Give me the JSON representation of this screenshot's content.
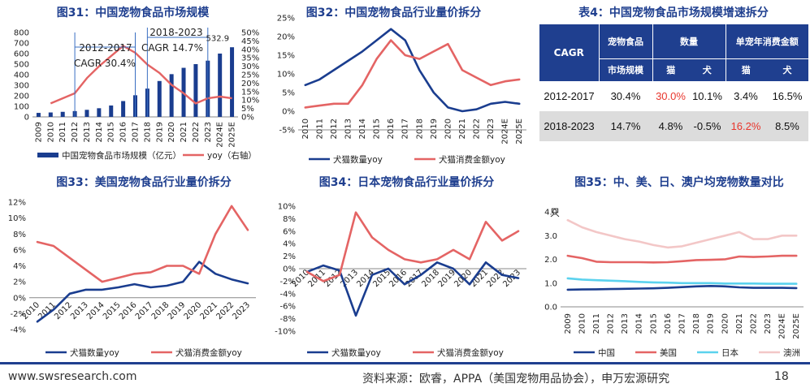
{
  "titles": {
    "c31": "图31：中国宠物食品市场规模",
    "c32": "图32：中国宠物食品行业量价拆分",
    "t4": "表4：中国宠物食品市场规模增速拆分",
    "c33": "图33：美国宠物食品行业量价拆分",
    "c34": "图34：日本宠物食品行业量价拆分",
    "c35": "图35：中、美、日、澳户均宠物数量对比"
  },
  "table4": {
    "h_cagr": "CAGR",
    "h_food": "宠物食品",
    "h_food2": "市场规模",
    "h_qty": "数量",
    "h_price": "单宠年消费金额",
    "h_cat": "猫",
    "h_dog": "犬",
    "h_cat2": "猫",
    "h_dog2": "犬",
    "rows": [
      {
        "period": "2012-2017",
        "food": "30.4%",
        "cat": "30.0%",
        "dog": "10.1%",
        "price_cat": "3.4%",
        "price_dog": "16.5%"
      },
      {
        "period": "2018-2023",
        "food": "14.7%",
        "cat": "4.8%",
        "dog": "-0.5%",
        "price_cat": "16.2%",
        "price_dog": "8.5%"
      }
    ]
  },
  "footer": {
    "url": "www.swsresearch.com",
    "source": "资料来源：欧睿，APPA（美国宠物用品协会），申万宏源研究",
    "page": "18"
  },
  "colors": {
    "blue": "#1a3d8f",
    "red": "#e46464",
    "lightblue": "#5bd2ee",
    "pink": "#f3c7c7",
    "title": "#1f3f8f"
  },
  "chart_data": [
    {
      "id": "c31",
      "type": "bar",
      "categories": [
        "2009",
        "2010",
        "2011",
        "2012",
        "2013",
        "2014",
        "2015",
        "2016",
        "2017",
        "2018",
        "2019",
        "2020",
        "2021",
        "2022",
        "2023",
        "2024E",
        "2025E"
      ],
      "series": [
        {
          "name": "中国宠物食品市场规模（亿元）",
          "type": "bar",
          "axis": "left",
          "values": [
            38,
            42,
            48,
            55,
            67,
            82,
            108,
            150,
            205,
            268,
            340,
            405,
            465,
            500,
            532.9,
            600,
            660
          ]
        },
        {
          "name": "yoy（右轴）",
          "type": "line",
          "axis": "right",
          "values": [
            null,
            8,
            11,
            14,
            23,
            30,
            36,
            42,
            38,
            31,
            26,
            19,
            14,
            8,
            11,
            12,
            11
          ]
        }
      ],
      "y_left": {
        "ticks": [
          0,
          100,
          200,
          300,
          400,
          500,
          600,
          700,
          800
        ],
        "labels": [
          "0",
          "100",
          "200",
          "300",
          "400",
          "500",
          "600",
          "700",
          "800"
        ]
      },
      "y_right": {
        "ticks": [
          0,
          5,
          10,
          15,
          20,
          25,
          30,
          35,
          40,
          45,
          50
        ],
        "labels": [
          "0%",
          "5%",
          "10%",
          "15%",
          "20%",
          "25%",
          "30%",
          "35%",
          "40%",
          "45%",
          "50%"
        ]
      },
      "annotations": {
        "a1": "2012-2017",
        "a2": "CAGR 30.4%",
        "a3": "2018-2023",
        "a4": "CAGR 14.7%",
        "a5": "532.9"
      }
    },
    {
      "id": "c32",
      "type": "line",
      "categories": [
        "2010",
        "2011",
        "2012",
        "2013",
        "2014",
        "2015",
        "2016",
        "2017",
        "2018",
        "2019",
        "2020",
        "2021",
        "2022",
        "2023",
        "2024E",
        "2025E"
      ],
      "series": [
        {
          "name": "犬猫数量yoy",
          "color": "blue",
          "values": [
            7,
            8.5,
            11,
            13.5,
            16,
            19,
            22,
            19,
            11,
            5,
            1,
            0,
            0.5,
            2,
            2.5,
            2
          ]
        },
        {
          "name": "犬猫消费金额yoy",
          "color": "red",
          "values": [
            1,
            1.5,
            2,
            2,
            7,
            14,
            19,
            15,
            14,
            16,
            18,
            11,
            9,
            7,
            8,
            8.5
          ]
        }
      ],
      "yticks": [
        -5,
        0,
        5,
        10,
        15,
        20,
        25
      ],
      "ylabels": [
        "-5%",
        "0%",
        "5%",
        "10%",
        "15%",
        "20%",
        "25%"
      ]
    },
    {
      "id": "c33",
      "type": "line",
      "categories": [
        "2010",
        "2011",
        "2012",
        "2013",
        "2014",
        "2015",
        "2016",
        "2017",
        "2018",
        "2019",
        "2020",
        "2021",
        "2022",
        "2023"
      ],
      "series": [
        {
          "name": "犬猫数量yoy",
          "color": "blue",
          "values": [
            -3,
            -1.5,
            0.5,
            1,
            1,
            1.3,
            1.7,
            1.3,
            1.5,
            2,
            4.5,
            3,
            2.3,
            1.8
          ]
        },
        {
          "name": "犬猫消费金额yoy",
          "color": "red",
          "values": [
            7,
            6.5,
            5,
            3.5,
            2,
            2.5,
            3,
            3.2,
            4,
            4,
            3,
            8,
            11.5,
            8.5
          ]
        }
      ],
      "yticks": [
        -4,
        -2,
        0,
        2,
        4,
        6,
        8,
        10,
        12
      ],
      "ylabels": [
        "-4%",
        "-2%",
        "0%",
        "2%",
        "4%",
        "6%",
        "8%",
        "10%",
        "12%"
      ]
    },
    {
      "id": "c34",
      "type": "line",
      "categories": [
        "2010",
        "2011",
        "2012",
        "2013",
        "2014",
        "2015",
        "2016",
        "2017",
        "2018",
        "2019",
        "2020",
        "2021",
        "2022",
        "2023"
      ],
      "series": [
        {
          "name": "犬猫数量yoy",
          "color": "blue",
          "values": [
            -0.5,
            0.5,
            -0.3,
            -7.5,
            -1,
            0,
            -2.5,
            -1,
            1,
            0,
            -2.5,
            1,
            -1,
            -1.5
          ]
        },
        {
          "name": "犬猫消费金额yoy",
          "color": "red",
          "values": [
            -0.5,
            -2,
            -1,
            9,
            5,
            3,
            1.5,
            1,
            1.5,
            3,
            1.5,
            7.5,
            4.5,
            6
          ]
        }
      ],
      "yticks": [
        -10,
        -8,
        -6,
        -4,
        -2,
        0,
        2,
        4,
        6,
        8,
        10
      ],
      "ylabels": [
        "-10%",
        "-8%",
        "-6%",
        "-4%",
        "-2%",
        "0%",
        "2%",
        "4%",
        "6%",
        "8%",
        "10%"
      ]
    },
    {
      "id": "c35",
      "type": "line",
      "ylabel": "只",
      "categories": [
        "2009",
        "2010",
        "2011",
        "2012",
        "2013",
        "2014",
        "2015",
        "2016",
        "2017",
        "2018",
        "2019",
        "2020",
        "2021",
        "2022",
        "2023",
        "2024E",
        "2025E"
      ],
      "series": [
        {
          "name": "中国",
          "color": "blue",
          "values": [
            0.72,
            0.73,
            0.74,
            0.75,
            0.76,
            0.77,
            0.78,
            0.8,
            0.83,
            0.86,
            0.88,
            0.86,
            0.82,
            0.8,
            0.8,
            0.8,
            0.79
          ]
        },
        {
          "name": "美国",
          "color": "red",
          "values": [
            2.15,
            2.05,
            1.9,
            1.88,
            1.88,
            1.88,
            1.87,
            1.88,
            1.92,
            1.97,
            1.98,
            2.0,
            2.12,
            2.1,
            2.12,
            2.15,
            2.15
          ]
        },
        {
          "name": "日本",
          "color": "lightblue",
          "values": [
            1.2,
            1.15,
            1.12,
            1.1,
            1.08,
            1.05,
            1.03,
            1.02,
            1.0,
            1.0,
            1.0,
            0.98,
            0.98,
            0.98,
            0.97,
            0.97,
            0.97
          ]
        },
        {
          "name": "澳洲",
          "color": "pink",
          "values": [
            3.65,
            3.35,
            3.15,
            3.0,
            2.85,
            2.75,
            2.6,
            2.5,
            2.55,
            2.7,
            2.85,
            3.0,
            3.15,
            2.85,
            2.85,
            3.0,
            3.0
          ]
        }
      ],
      "yticks": [
        0.0,
        1.0,
        2.0,
        3.0,
        4.0
      ],
      "ylabels": [
        "0.0",
        "1.0",
        "2.0",
        "3.0",
        "4.0"
      ]
    }
  ]
}
